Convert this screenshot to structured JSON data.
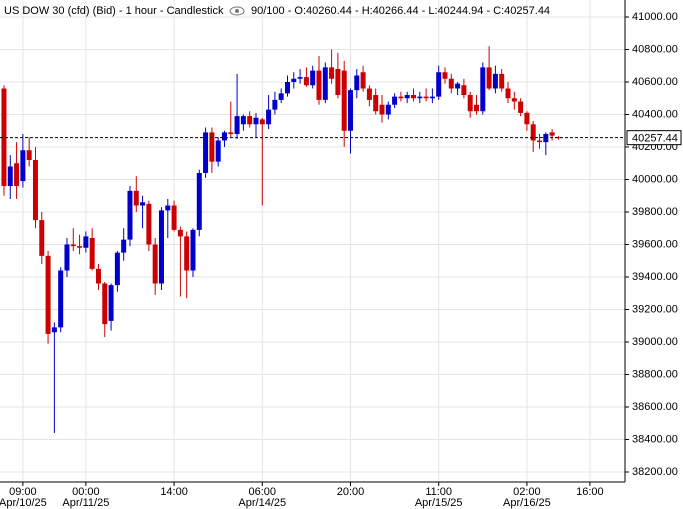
{
  "chart_data": {
    "type": "candlestick",
    "title": "US DOW 30 (cfd) (Bid) - 1 hour - Candlestick",
    "info": "90/100 - O:40260.44 - H:40266.44 - L:40244.94 - C:40257.44",
    "up_color": "#0000cc",
    "down_color": "#cc0000",
    "grid": true,
    "last_price": 40257.44,
    "open": [
      40560,
      39960,
      40100,
      39990,
      40180,
      40120,
      39750,
      39530,
      39060,
      39090,
      39440,
      39600,
      39590,
      39580,
      39640,
      39450,
      39360,
      39130,
      39350,
      39550,
      39630,
      39930,
      39840,
      39850,
      39600,
      39360,
      39810,
      39840,
      39690,
      39650,
      39440,
      39690,
      40040,
      40290,
      40110,
      40240,
      40290,
      40280,
      40340,
      40390,
      40340,
      40370,
      40340,
      40430,
      40490,
      40530,
      40600,
      40620,
      40630,
      40580,
      40670,
      40490,
      40690,
      40680,
      40670,
      40300,
      40550,
      40660,
      40560,
      40520,
      40460,
      40400,
      40460,
      40510,
      40500,
      40520,
      40500,
      40510,
      40500,
      40510,
      40660,
      40620,
      40560,
      40580,
      40520,
      40460,
      40420,
      40690,
      40560,
      40650,
      40560,
      40500,
      40480,
      40410,
      40340,
      40240,
      40230,
      40290,
      40260.44
    ],
    "high": [
      40580,
      40150,
      40230,
      40280,
      40260,
      40200,
      39800,
      39560,
      39120,
      39460,
      39640,
      39700,
      39660,
      39680,
      39700,
      39480,
      39370,
      39360,
      39560,
      39700,
      39960,
      40020,
      39900,
      39870,
      39640,
      39830,
      39880,
      39870,
      39710,
      39680,
      39700,
      40060,
      40320,
      40320,
      40260,
      40300,
      40480,
      40650,
      40400,
      40420,
      40410,
      40380,
      40520,
      40540,
      40560,
      40640,
      40660,
      40680,
      40690,
      40700,
      40760,
      40720,
      40800,
      40780,
      40730,
      40560,
      40680,
      40700,
      40580,
      40560,
      40520,
      40480,
      40530,
      40540,
      40540,
      40560,
      40540,
      40560,
      40560,
      40700,
      40690,
      40650,
      40600,
      40620,
      40540,
      40520,
      40720,
      40820,
      40700,
      40680,
      40600,
      40540,
      40500,
      40420,
      40360,
      40280,
      40290,
      40310,
      40266.44
    ],
    "low": [
      39900,
      39880,
      39880,
      39950,
      40080,
      39700,
      39480,
      38990,
      38440,
      39060,
      39400,
      39560,
      39540,
      39550,
      39440,
      39320,
      39030,
      39070,
      39310,
      39500,
      39590,
      39800,
      39700,
      39560,
      39290,
      39320,
      39640,
      39680,
      39280,
      39270,
      39400,
      39650,
      40010,
      40040,
      40080,
      40200,
      40260,
      40250,
      40300,
      40320,
      40260,
      39840,
      40310,
      40400,
      40470,
      40510,
      40560,
      40590,
      40570,
      40560,
      40460,
      40470,
      40590,
      40500,
      40200,
      40160,
      40500,
      40540,
      40450,
      40400,
      40350,
      40370,
      40440,
      40480,
      40470,
      40480,
      40470,
      40480,
      40470,
      40490,
      40590,
      40530,
      40520,
      40500,
      40380,
      40400,
      40400,
      40550,
      40530,
      40540,
      40470,
      40430,
      40390,
      40300,
      40170,
      40190,
      40150,
      40240,
      40244.94
    ],
    "close": [
      39960,
      40080,
      39960,
      40180,
      40120,
      39750,
      39530,
      39050,
      39090,
      39440,
      39600,
      39590,
      39580,
      39650,
      39450,
      39360,
      39110,
      39350,
      39550,
      39630,
      39930,
      39840,
      39860,
      39600,
      39360,
      39810,
      39840,
      39690,
      39650,
      39440,
      39690,
      40040,
      40290,
      40110,
      40240,
      40290,
      40280,
      40390,
      40390,
      40340,
      40380,
      40340,
      40430,
      40490,
      40530,
      40600,
      40620,
      40630,
      40580,
      40670,
      40490,
      40690,
      40620,
      40520,
      40300,
      40550,
      40640,
      40560,
      40490,
      40420,
      40400,
      40460,
      40510,
      40500,
      40520,
      40500,
      40510,
      40500,
      40510,
      40660,
      40620,
      40560,
      40590,
      40520,
      40420,
      40420,
      40690,
      40560,
      40650,
      40560,
      40500,
      40480,
      40410,
      40340,
      40240,
      40230,
      40280,
      40270,
      40257.44
    ],
    "xlim": [
      -0.63,
      98.57
    ],
    "xticks": [
      {
        "value": 3,
        "label": "09:00",
        "date": "Apr/10/25"
      },
      {
        "value": 13,
        "label": "00:00",
        "date": "Apr/11/25"
      },
      {
        "value": 27,
        "label": "14:00"
      },
      {
        "value": 41,
        "label": "06:00",
        "date": "Apr/14/25"
      },
      {
        "value": 55,
        "label": "20:00"
      },
      {
        "value": 69,
        "label": "11:00",
        "date": "Apr/15/25"
      },
      {
        "value": 83,
        "label": "02:00",
        "date": "Apr/16/25"
      },
      {
        "value": 93,
        "label": "16:00"
      }
    ],
    "ylim": [
      38138.5,
      41104.6
    ],
    "yticks": [
      {
        "value": 38200,
        "label": "38200.00"
      },
      {
        "value": 38400,
        "label": "38400.00"
      },
      {
        "value": 38600,
        "label": "38600.00"
      },
      {
        "value": 38800,
        "label": "38800.00"
      },
      {
        "value": 39000,
        "label": "39000.00"
      },
      {
        "value": 39200,
        "label": "39200.00"
      },
      {
        "value": 39400,
        "label": "39400.00"
      },
      {
        "value": 39600,
        "label": "39600.00"
      },
      {
        "value": 39800,
        "label": "39800.00"
      },
      {
        "value": 40000,
        "label": "40000.00"
      },
      {
        "value": 40200,
        "label": "40200.00"
      },
      {
        "value": 40400,
        "label": "40400.00"
      },
      {
        "value": 40600,
        "label": "40600.00"
      },
      {
        "value": 40800,
        "label": "40800.00"
      },
      {
        "value": 41000,
        "label": "41000.00"
      }
    ]
  }
}
